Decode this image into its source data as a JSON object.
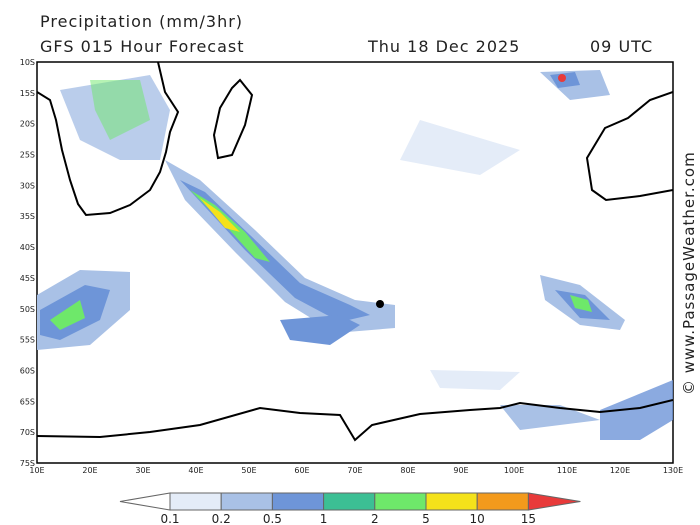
{
  "header": {
    "title": "Precipitation (mm/3hr)",
    "model": "GFS 015 Hour Forecast",
    "date": "Thu 18 Dec 2025",
    "time": "09 UTC"
  },
  "map": {
    "lat_labels": [
      "10S",
      "15S",
      "20S",
      "25S",
      "30S",
      "35S",
      "40S",
      "45S",
      "50S",
      "55S",
      "60S",
      "65S",
      "70S",
      "75S"
    ],
    "lon_labels": [
      "10E",
      "20E",
      "30E",
      "40E",
      "50E",
      "60E",
      "70E",
      "80E",
      "90E",
      "100E",
      "110E",
      "120E",
      "130E"
    ]
  },
  "legend": {
    "thresholds": [
      0.1,
      0.2,
      0.5,
      1,
      2,
      5,
      10,
      15
    ],
    "colors": [
      "#ffffff",
      "#e4ecf8",
      "#a9c1e6",
      "#6e95d8",
      "#3cbf94",
      "#6ee86a",
      "#f4e21a",
      "#f39a1c",
      "#e83a3a"
    ]
  },
  "credit": "© www.PassageWeather.com"
}
